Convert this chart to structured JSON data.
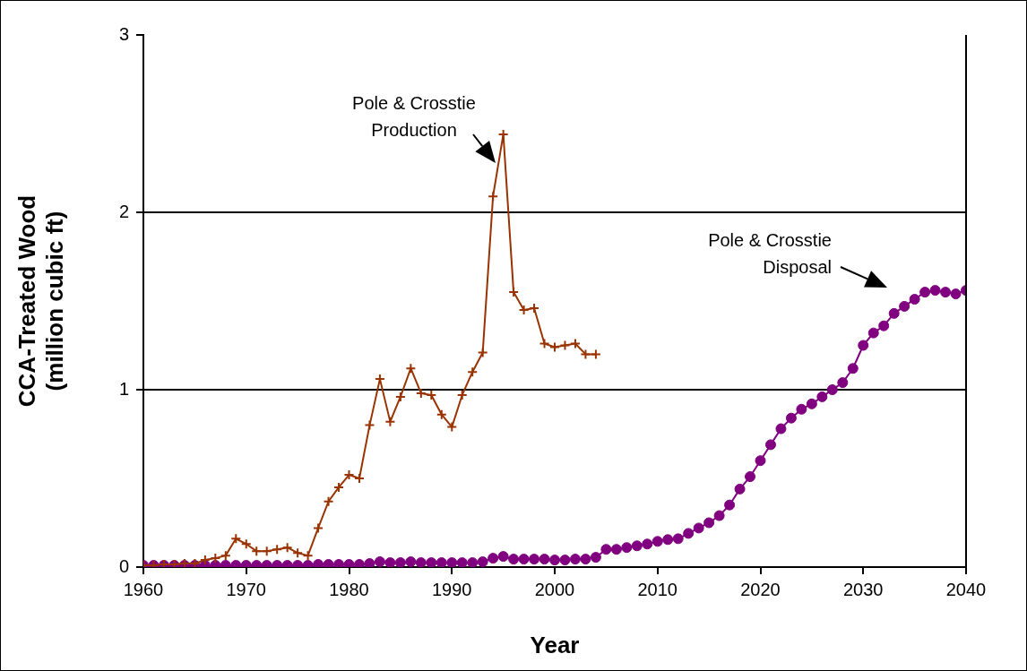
{
  "chart_data": {
    "type": "line",
    "xlabel": "Year",
    "ylabel": "CCA-Treated Wood\n(million cubic ft)",
    "xlim": [
      1960,
      2040
    ],
    "xticks": [
      1960,
      1970,
      1980,
      1990,
      2000,
      2010,
      2020,
      2030,
      2040
    ],
    "ylim": [
      0,
      3
    ],
    "yticks": [
      0,
      1,
      2,
      3
    ],
    "grid": "y",
    "legend": false,
    "line_style": "solid",
    "series": [
      {
        "name": null,
        "color": "#993300",
        "marker": "cross",
        "x": [
          1960,
          1961,
          1962,
          1963,
          1964,
          1965,
          1966,
          1967,
          1968,
          1969,
          1970,
          1971,
          1972,
          1973,
          1974,
          1975,
          1976,
          1977,
          1978,
          1979,
          1980,
          1981,
          1982,
          1983,
          1984,
          1985,
          1986,
          1987,
          1988,
          1989,
          1990,
          1991,
          1992,
          1993,
          1994,
          1995,
          1996,
          1997,
          1998,
          1999,
          2000,
          2001,
          2002,
          2003,
          2004
        ],
        "values": [
          0.01,
          0.01,
          0.015,
          0.015,
          0.02,
          0.02,
          0.04,
          0.05,
          0.065,
          0.16,
          0.13,
          0.09,
          0.09,
          0.1,
          0.11,
          0.08,
          0.065,
          0.22,
          0.37,
          0.45,
          0.52,
          0.5,
          0.8,
          1.06,
          0.82,
          0.96,
          1.12,
          0.98,
          0.97,
          0.86,
          0.79,
          0.97,
          1.1,
          1.21,
          2.09,
          2.44,
          1.55,
          1.45,
          1.46,
          1.26,
          1.24,
          1.25,
          1.26,
          1.2,
          1.2
        ]
      },
      {
        "name": null,
        "color": "#800080",
        "marker": "circle",
        "x": [
          1960,
          1961,
          1962,
          1963,
          1964,
          1965,
          1966,
          1967,
          1968,
          1969,
          1970,
          1971,
          1972,
          1973,
          1974,
          1975,
          1976,
          1977,
          1978,
          1979,
          1980,
          1981,
          1982,
          1983,
          1984,
          1985,
          1986,
          1987,
          1988,
          1989,
          1990,
          1991,
          1992,
          1993,
          1994,
          1995,
          1996,
          1997,
          1998,
          1999,
          2000,
          2001,
          2002,
          2003,
          2004,
          2005,
          2006,
          2007,
          2008,
          2009,
          2010,
          2011,
          2012,
          2013,
          2014,
          2015,
          2016,
          2017,
          2018,
          2019,
          2020,
          2021,
          2022,
          2023,
          2024,
          2025,
          2026,
          2027,
          2028,
          2029,
          2030,
          2031,
          2032,
          2033,
          2034,
          2035,
          2036,
          2037,
          2038,
          2039,
          2040
        ],
        "values": [
          0.01,
          0.01,
          0.01,
          0.01,
          0.01,
          0.01,
          0.01,
          0.01,
          0.01,
          0.01,
          0.01,
          0.01,
          0.01,
          0.01,
          0.01,
          0.01,
          0.01,
          0.015,
          0.015,
          0.015,
          0.015,
          0.015,
          0.02,
          0.03,
          0.025,
          0.025,
          0.03,
          0.025,
          0.025,
          0.025,
          0.025,
          0.025,
          0.025,
          0.03,
          0.05,
          0.06,
          0.045,
          0.045,
          0.045,
          0.045,
          0.04,
          0.04,
          0.045,
          0.045,
          0.055,
          0.1,
          0.1,
          0.11,
          0.12,
          0.13,
          0.145,
          0.155,
          0.16,
          0.19,
          0.22,
          0.25,
          0.29,
          0.35,
          0.44,
          0.51,
          0.6,
          0.69,
          0.78,
          0.84,
          0.89,
          0.92,
          0.96,
          1.0,
          1.04,
          1.12,
          1.25,
          1.32,
          1.36,
          1.43,
          1.47,
          1.51,
          1.55,
          1.56,
          1.55,
          1.54,
          1.56
        ]
      }
    ],
    "annotations": [
      "Pole & Crosstie\nProduction",
      "Pole & Crosstie\nDisposal"
    ]
  }
}
